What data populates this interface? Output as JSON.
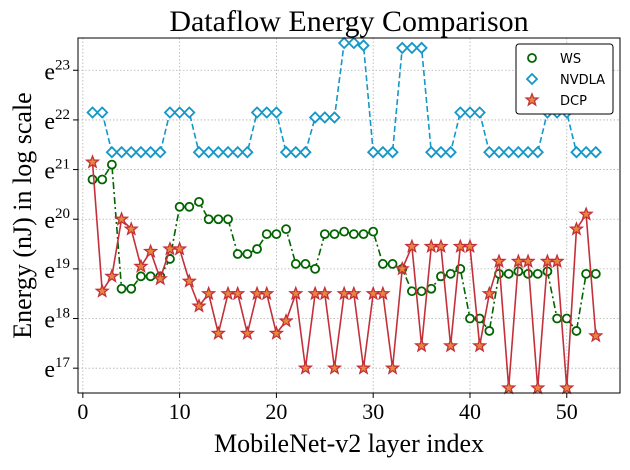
{
  "chart_data": {
    "type": "line",
    "title": "Dataflow Energy Comparison",
    "xlabel": "MobileNet-v2 layer index",
    "ylabel": "Energy (nJ) in log scale",
    "y_scale": "log (base e)",
    "xlim": [
      -0.5,
      55.5
    ],
    "ylim": [
      16.5,
      23.65
    ],
    "x_ticks": [
      0,
      10,
      20,
      30,
      40,
      50
    ],
    "x_tick_labels": [
      "0",
      "10",
      "20",
      "30",
      "40",
      "50"
    ],
    "y_ticks": [
      17,
      18,
      19,
      20,
      21,
      22,
      23
    ],
    "y_tick_labels": [
      {
        "base": "e",
        "exp": "17"
      },
      {
        "base": "e",
        "exp": "18"
      },
      {
        "base": "e",
        "exp": "19"
      },
      {
        "base": "e",
        "exp": "20"
      },
      {
        "base": "e",
        "exp": "21"
      },
      {
        "base": "e",
        "exp": "22"
      },
      {
        "base": "e",
        "exp": "23"
      }
    ],
    "grid": true,
    "legend_position": "top-right",
    "x": [
      1,
      2,
      3,
      4,
      5,
      6,
      7,
      8,
      9,
      10,
      11,
      12,
      13,
      14,
      15,
      16,
      17,
      18,
      19,
      20,
      21,
      22,
      23,
      24,
      25,
      26,
      27,
      28,
      29,
      30,
      31,
      32,
      33,
      34,
      35,
      36,
      37,
      38,
      39,
      40,
      41,
      42,
      43,
      44,
      45,
      46,
      47,
      48,
      49,
      50,
      51,
      52,
      53
    ],
    "series": [
      {
        "name": "WS",
        "color": "#006400",
        "line_style": "dashdot",
        "marker": "circle",
        "values": [
          20.8,
          20.8,
          21.1,
          18.6,
          18.6,
          18.85,
          18.85,
          18.85,
          19.2,
          20.25,
          20.25,
          20.35,
          20.0,
          20.0,
          20.0,
          19.3,
          19.3,
          19.4,
          19.7,
          19.7,
          19.8,
          19.1,
          19.1,
          19.0,
          19.7,
          19.7,
          19.75,
          19.7,
          19.7,
          19.75,
          19.1,
          19.1,
          19.0,
          18.55,
          18.55,
          18.6,
          18.85,
          18.9,
          19.0,
          18.0,
          18.0,
          17.75,
          18.9,
          18.9,
          18.95,
          18.9,
          18.9,
          18.95,
          18.0,
          18.0,
          17.75,
          18.9,
          18.9
        ]
      },
      {
        "name": "NVDLA",
        "color": "#1597c8",
        "line_style": "dashed",
        "marker": "diamond",
        "values": [
          22.15,
          22.15,
          21.35,
          21.35,
          21.35,
          21.35,
          21.35,
          21.35,
          22.15,
          22.15,
          22.15,
          21.35,
          21.35,
          21.35,
          21.35,
          21.35,
          21.35,
          22.15,
          22.15,
          22.15,
          21.35,
          21.35,
          21.35,
          22.05,
          22.05,
          22.05,
          23.55,
          23.55,
          23.5,
          21.35,
          21.35,
          21.35,
          23.45,
          23.45,
          23.45,
          21.35,
          21.35,
          21.35,
          22.15,
          22.15,
          22.15,
          21.35,
          21.35,
          21.35,
          21.35,
          21.35,
          21.35,
          22.15,
          22.15,
          22.15,
          21.35,
          21.35,
          21.35
        ]
      },
      {
        "name": "DCP",
        "color": "#c4303a",
        "line_style": "solid",
        "marker": "star",
        "values": [
          21.15,
          18.55,
          18.85,
          20.0,
          19.8,
          19.05,
          19.35,
          18.8,
          19.4,
          19.4,
          18.75,
          18.25,
          18.5,
          17.7,
          18.5,
          18.5,
          17.7,
          18.5,
          18.5,
          17.7,
          17.95,
          18.5,
          17.0,
          18.5,
          18.5,
          17.0,
          18.5,
          18.5,
          17.0,
          18.5,
          18.5,
          17.0,
          19.0,
          19.45,
          17.45,
          19.45,
          19.45,
          17.45,
          19.45,
          19.45,
          17.45,
          18.5,
          19.15,
          16.6,
          19.15,
          19.15,
          16.6,
          19.15,
          19.15,
          16.6,
          19.8,
          20.1,
          17.65
        ]
      }
    ]
  }
}
